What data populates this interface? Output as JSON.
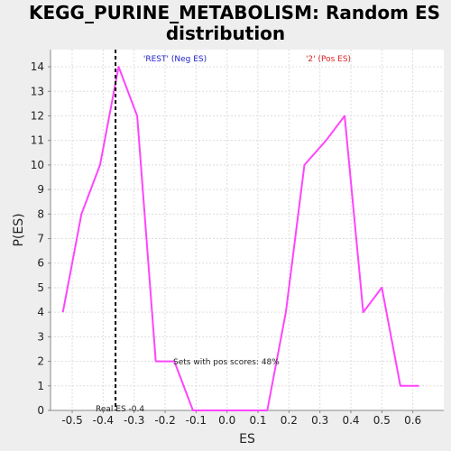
{
  "chart_data": {
    "type": "line",
    "title_line1": "KEGG_PURINE_METABOLISM: Random ES",
    "title_line2": "distribution",
    "xlabel": "ES",
    "ylabel": "P(ES)",
    "xlim": [
      -0.57,
      0.7
    ],
    "ylim": [
      0,
      14.7
    ],
    "x_ticks": [
      -0.5,
      -0.4,
      -0.3,
      -0.2,
      -0.1,
      0.0,
      0.1,
      0.2,
      0.3,
      0.4,
      0.5,
      0.6
    ],
    "y_ticks": [
      0,
      1,
      2,
      3,
      4,
      5,
      6,
      7,
      8,
      9,
      10,
      11,
      12,
      13,
      14
    ],
    "grid": true,
    "series": [
      {
        "color": "#ff44ff",
        "x": [
          -0.53,
          -0.47,
          -0.41,
          -0.35,
          -0.29,
          -0.23,
          -0.17,
          -0.11,
          -0.05,
          0.01,
          0.07,
          0.13,
          0.19,
          0.25,
          0.32,
          0.38,
          0.44,
          0.5,
          0.56,
          0.62
        ],
        "y": [
          4,
          8,
          10,
          14,
          12,
          2,
          2,
          0,
          0,
          0,
          0,
          0,
          4,
          10,
          11,
          12,
          4,
          5,
          1,
          1
        ]
      }
    ],
    "real_es": -0.36,
    "annotations": {
      "neg_label": "'REST' (Neg ES)",
      "neg_color": "#2222cc",
      "pos_label": "'2' (Pos ES)",
      "pos_color": "#dd2222",
      "real_es_label": "Real ES -0.4",
      "pos_scores_label": "Sets with pos scores: 48%"
    }
  }
}
